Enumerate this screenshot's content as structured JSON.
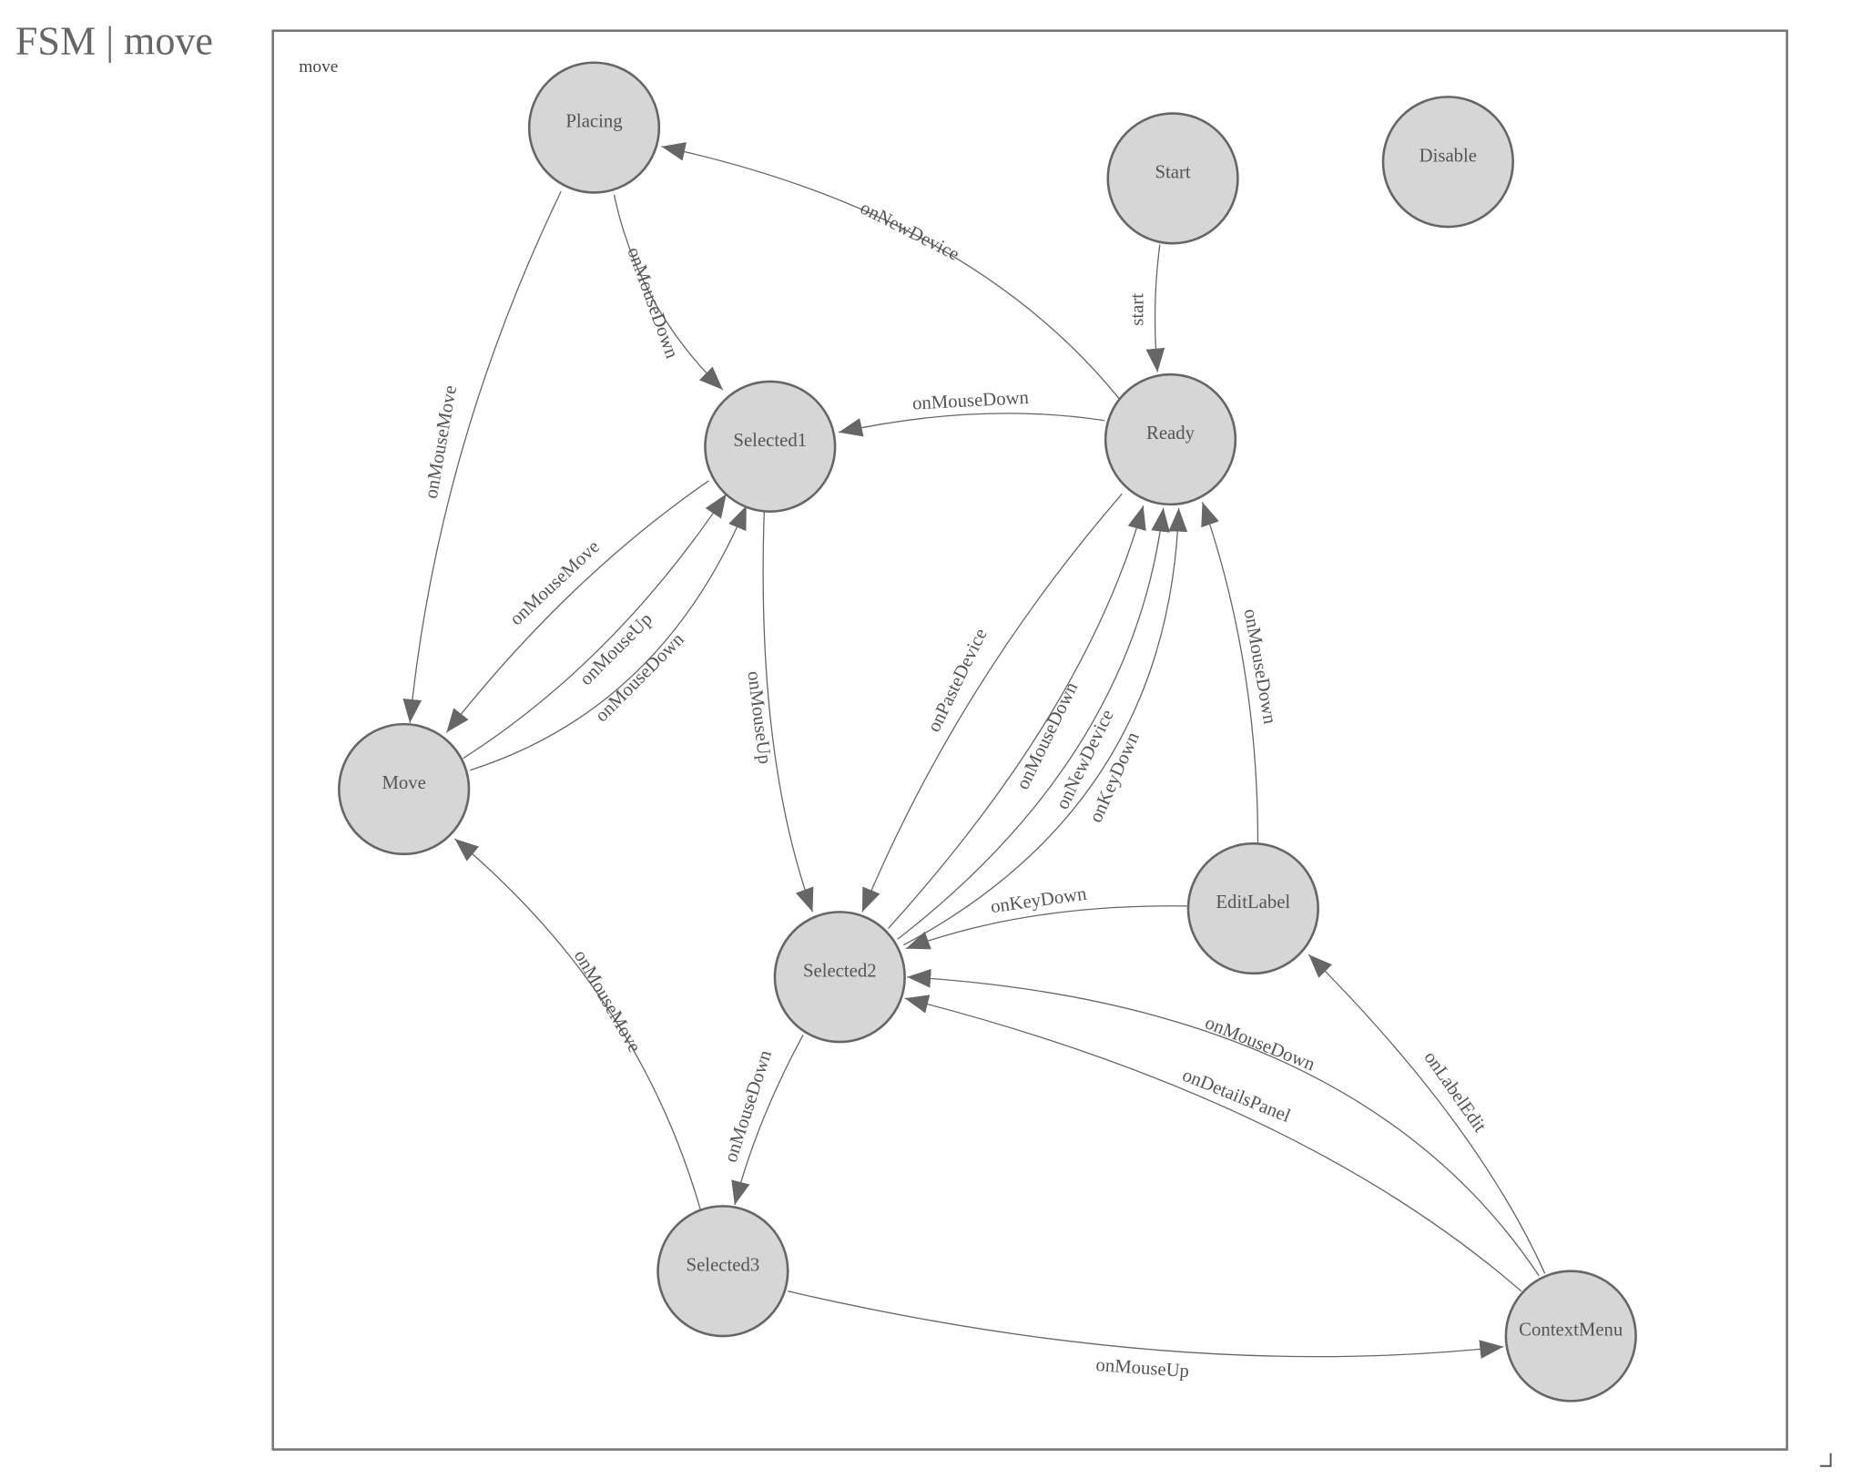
{
  "header": {
    "title": "FSM | move"
  },
  "diagram": {
    "frame_label": "move",
    "colors": {
      "node_fill": "#d6d6d6",
      "stroke": "#666666",
      "text": "#555555"
    },
    "nodes": [
      {
        "id": "Placing",
        "label": "Placing"
      },
      {
        "id": "Start",
        "label": "Start"
      },
      {
        "id": "Disable",
        "label": "Disable"
      },
      {
        "id": "Selected1",
        "label": "Selected1"
      },
      {
        "id": "Ready",
        "label": "Ready"
      },
      {
        "id": "Move",
        "label": "Move"
      },
      {
        "id": "EditLabel",
        "label": "EditLabel"
      },
      {
        "id": "Selected2",
        "label": "Selected2"
      },
      {
        "id": "Selected3",
        "label": "Selected3"
      },
      {
        "id": "ContextMenu",
        "label": "ContextMenu"
      }
    ],
    "edges": [
      {
        "from": "Placing",
        "to": "Selected1",
        "label": "onMouseDown"
      },
      {
        "from": "Placing",
        "to": "Move",
        "label": "onMouseMove"
      },
      {
        "from": "Ready",
        "to": "Placing",
        "label": "onNewDevice"
      },
      {
        "from": "Start",
        "to": "Ready",
        "label": "start"
      },
      {
        "from": "Ready",
        "to": "Selected1",
        "label": "onMouseDown"
      },
      {
        "from": "Selected1",
        "to": "Move",
        "label": "onMouseMove"
      },
      {
        "from": "Move",
        "to": "Selected1",
        "label": "onMouseUp"
      },
      {
        "from": "Move",
        "to": "Selected1",
        "label": "onMouseDown"
      },
      {
        "from": "Selected1",
        "to": "Selected2",
        "label": "onMouseUp"
      },
      {
        "from": "Ready",
        "to": "Selected2",
        "label": "onPasteDevice"
      },
      {
        "from": "Selected2",
        "to": "Ready",
        "label": "onMouseDown"
      },
      {
        "from": "Selected2",
        "to": "Ready",
        "label": "onNewDevice"
      },
      {
        "from": "Selected2",
        "to": "Ready",
        "label": "onKeyDown"
      },
      {
        "from": "EditLabel",
        "to": "Ready",
        "label": "onMouseDown"
      },
      {
        "from": "EditLabel",
        "to": "Selected2",
        "label": "onKeyDown"
      },
      {
        "from": "ContextMenu",
        "to": "Selected2",
        "label": "onMouseDown"
      },
      {
        "from": "ContextMenu",
        "to": "Selected2",
        "label": "onDetailsPanel"
      },
      {
        "from": "ContextMenu",
        "to": "EditLabel",
        "label": "onLabelEdit"
      },
      {
        "from": "Selected2",
        "to": "Selected3",
        "label": "onMouseDown"
      },
      {
        "from": "Selected3",
        "to": "Move",
        "label": "onMouseMove"
      },
      {
        "from": "Selected3",
        "to": "ContextMenu",
        "label": "onMouseUp"
      }
    ]
  }
}
